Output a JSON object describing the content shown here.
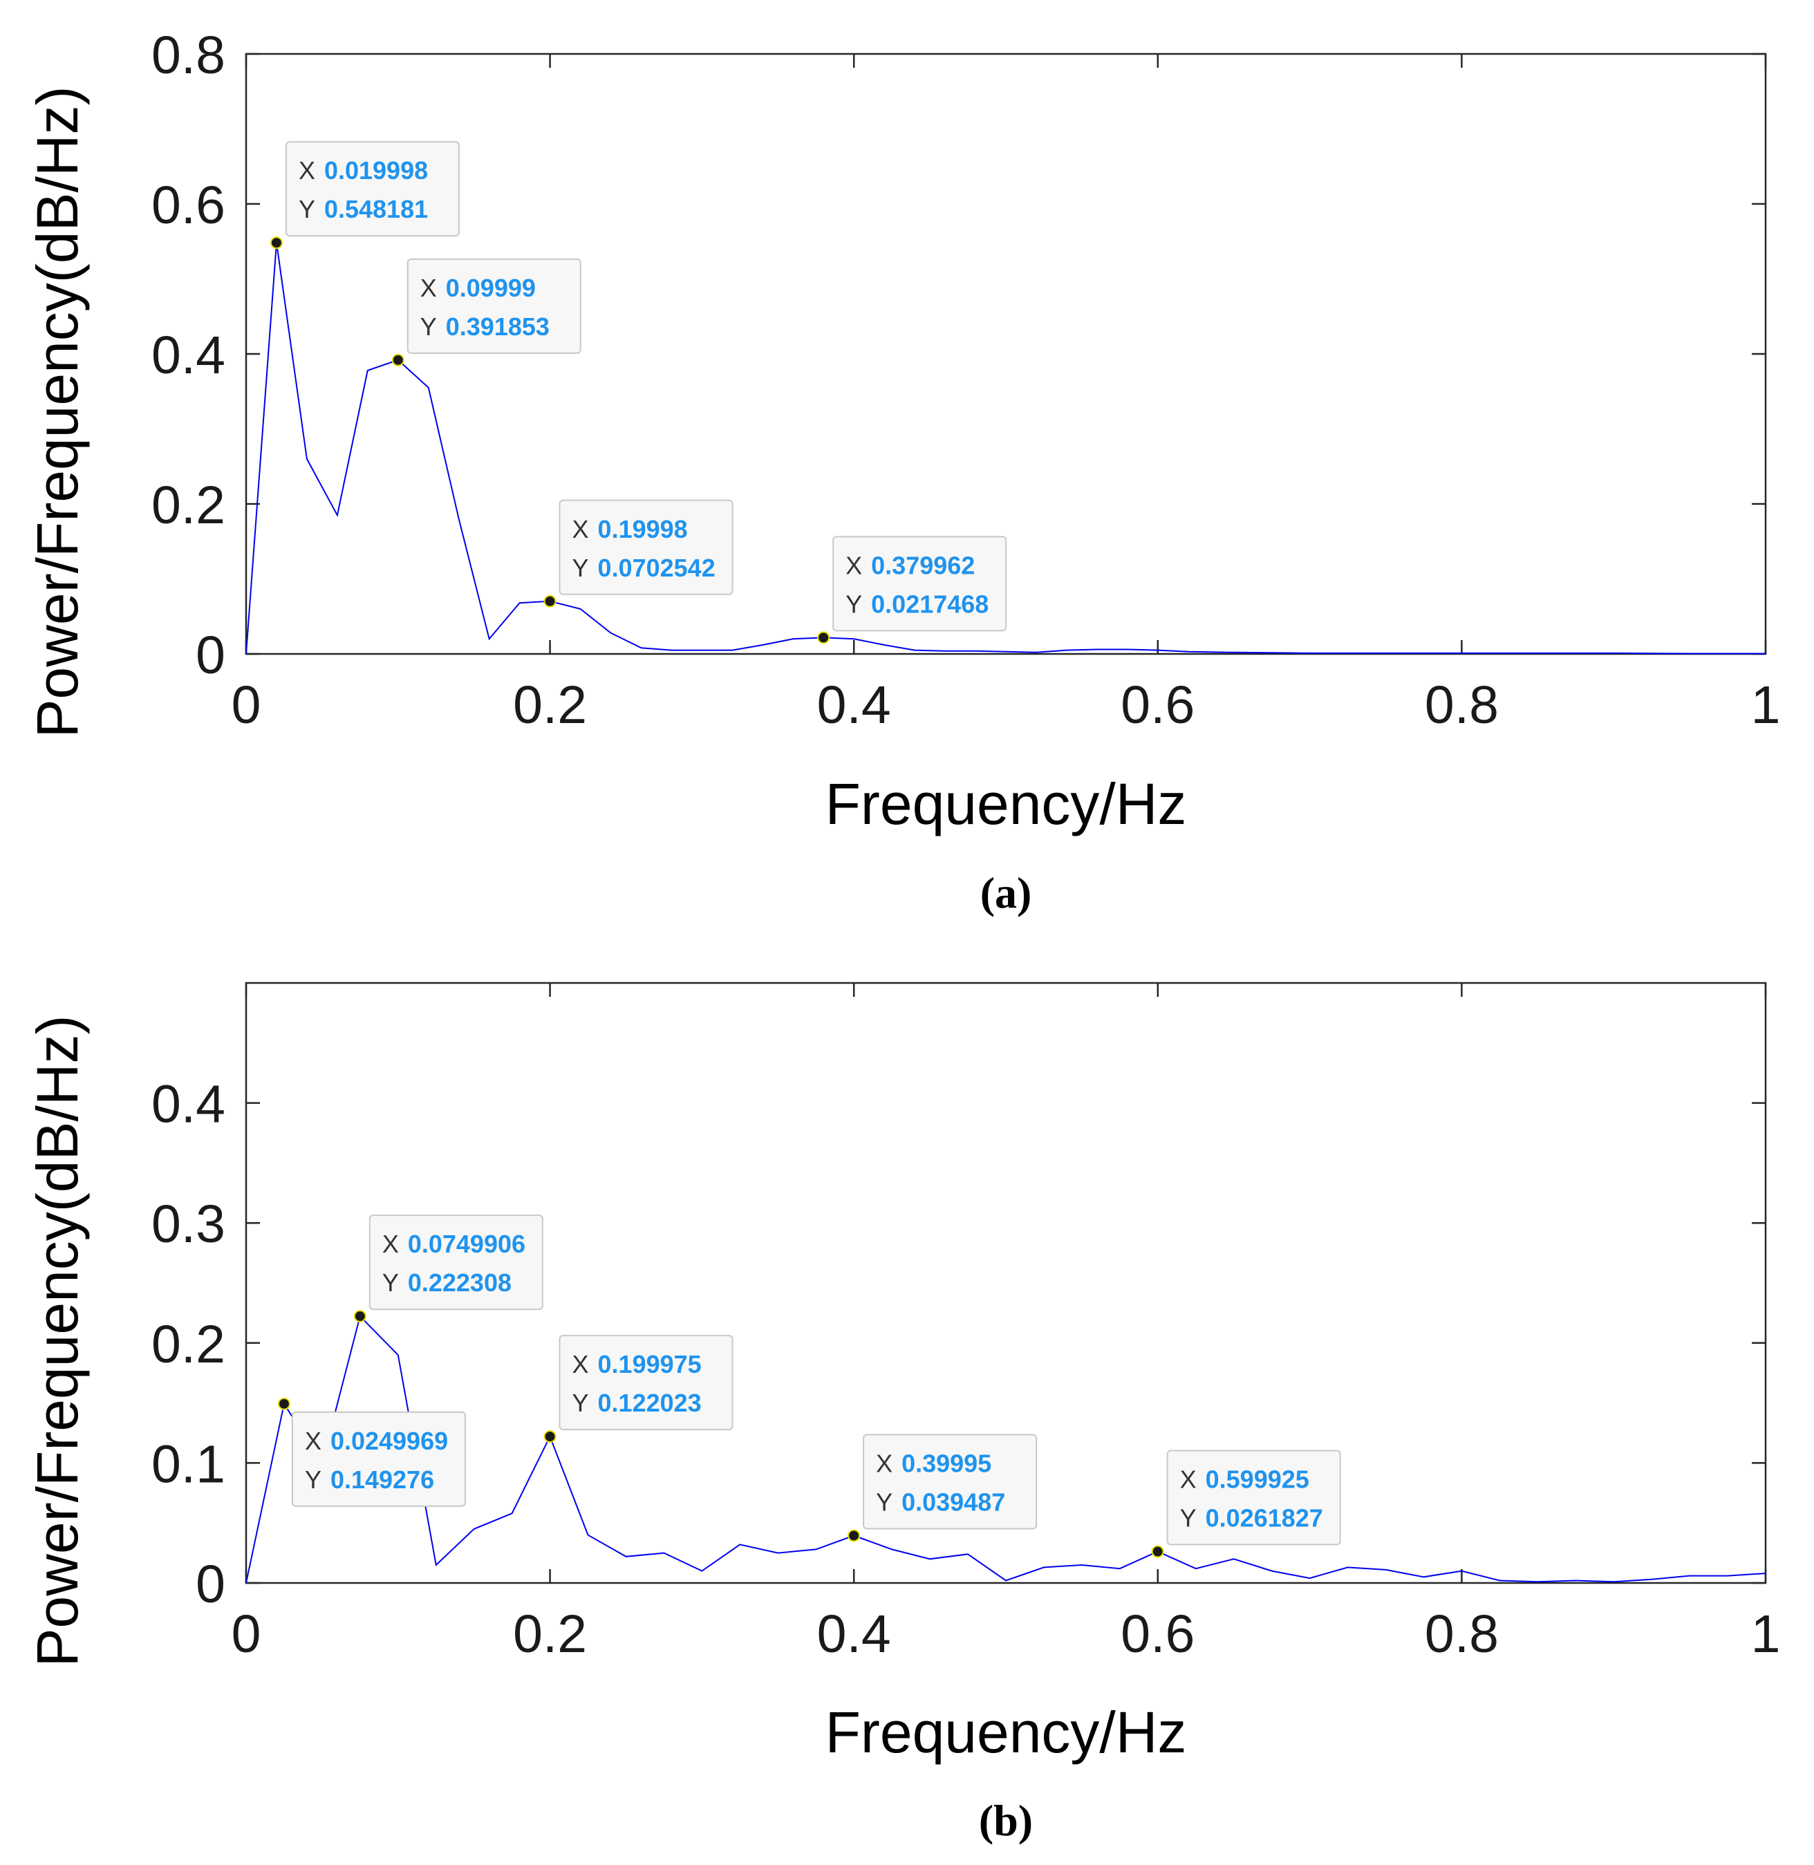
{
  "chart_data": [
    {
      "type": "line",
      "caption": "(a)",
      "xlabel": "Frequency/Hz",
      "ylabel": "Power/Frequency(dB/Hz)",
      "xlim": [
        0,
        1
      ],
      "ylim": [
        0,
        0.8
      ],
      "xticks": [
        0,
        0.2,
        0.4,
        0.6,
        0.8,
        1
      ],
      "xtick_labels": [
        "0",
        "0.2",
        "0.4",
        "0.6",
        "0.8",
        "1"
      ],
      "yticks": [
        0,
        0.2,
        0.4,
        0.6,
        0.8
      ],
      "ytick_labels": [
        "0",
        "0.2",
        "0.4",
        "0.6",
        "0.8"
      ],
      "line_color": "#0000ee",
      "series": [
        {
          "name": "spectrum",
          "x": [
            0,
            0.019998,
            0.04,
            0.06,
            0.08,
            0.09999,
            0.12,
            0.14,
            0.16,
            0.18,
            0.19998,
            0.22,
            0.24,
            0.26,
            0.28,
            0.3,
            0.32,
            0.34,
            0.36,
            0.379962,
            0.4,
            0.42,
            0.44,
            0.46,
            0.48,
            0.5,
            0.52,
            0.54,
            0.56,
            0.58,
            0.6,
            0.62,
            0.65,
            0.7,
            0.75,
            0.8,
            0.85,
            0.9,
            0.95,
            1.0
          ],
          "y": [
            0,
            0.548181,
            0.26,
            0.185,
            0.378,
            0.391853,
            0.355,
            0.18,
            0.02,
            0.068,
            0.0702542,
            0.06,
            0.028,
            0.008,
            0.005,
            0.005,
            0.005,
            0.012,
            0.02,
            0.0217468,
            0.02,
            0.012,
            0.005,
            0.004,
            0.004,
            0.003,
            0.002,
            0.005,
            0.006,
            0.006,
            0.005,
            0.003,
            0.002,
            0.001,
            0.001,
            0.001,
            0.001,
            0.001,
            0.0005,
            0.0005
          ]
        }
      ],
      "annotations": [
        {
          "x_label": "X",
          "y_label": "Y",
          "x": 0.019998,
          "y": 0.548181,
          "x_text": "0.019998",
          "y_text": "0.548181",
          "placement": "upper-right"
        },
        {
          "x_label": "X",
          "y_label": "Y",
          "x": 0.09999,
          "y": 0.391853,
          "x_text": "0.09999",
          "y_text": "0.391853",
          "placement": "upper-right"
        },
        {
          "x_label": "X",
          "y_label": "Y",
          "x": 0.19998,
          "y": 0.0702542,
          "x_text": "0.19998",
          "y_text": "0.0702542",
          "placement": "upper-right"
        },
        {
          "x_label": "X",
          "y_label": "Y",
          "x": 0.379962,
          "y": 0.0217468,
          "x_text": "0.379962",
          "y_text": "0.0217468",
          "placement": "upper-right"
        }
      ]
    },
    {
      "type": "line",
      "caption": "(b)",
      "xlabel": "Frequency/Hz",
      "ylabel": "Power/Frequency(dB/Hz)",
      "xlim": [
        0,
        1
      ],
      "ylim": [
        0,
        0.5
      ],
      "xticks": [
        0,
        0.2,
        0.4,
        0.6,
        0.8,
        1
      ],
      "xtick_labels": [
        "0",
        "0.2",
        "0.4",
        "0.6",
        "0.8",
        "1"
      ],
      "yticks": [
        0,
        0.1,
        0.2,
        0.3,
        0.4
      ],
      "ytick_labels": [
        "0",
        "0.1",
        "0.2",
        "0.3",
        "0.4"
      ],
      "line_color": "#0000ee",
      "series": [
        {
          "name": "spectrum",
          "x": [
            0,
            0.0249969,
            0.05,
            0.0749906,
            0.1,
            0.125,
            0.15,
            0.175,
            0.199975,
            0.225,
            0.25,
            0.275,
            0.3,
            0.325,
            0.35,
            0.375,
            0.39995,
            0.425,
            0.45,
            0.475,
            0.5,
            0.525,
            0.55,
            0.575,
            0.599925,
            0.625,
            0.65,
            0.675,
            0.7,
            0.725,
            0.75,
            0.775,
            0.8,
            0.825,
            0.85,
            0.875,
            0.9,
            0.925,
            0.95,
            0.975,
            1.0
          ],
          "y": [
            0,
            0.149276,
            0.1,
            0.222308,
            0.19,
            0.015,
            0.045,
            0.058,
            0.122023,
            0.04,
            0.022,
            0.025,
            0.01,
            0.032,
            0.025,
            0.028,
            0.039487,
            0.028,
            0.02,
            0.024,
            0.002,
            0.013,
            0.015,
            0.012,
            0.0261827,
            0.012,
            0.02,
            0.01,
            0.004,
            0.013,
            0.011,
            0.005,
            0.01,
            0.002,
            0.001,
            0.002,
            0.001,
            0.003,
            0.006,
            0.006,
            0.008
          ]
        }
      ],
      "annotations": [
        {
          "x_label": "X",
          "y_label": "Y",
          "x": 0.0249969,
          "y": 0.149276,
          "x_text": "0.0249969",
          "y_text": "0.149276",
          "placement": "lower-right"
        },
        {
          "x_label": "X",
          "y_label": "Y",
          "x": 0.0749906,
          "y": 0.222308,
          "x_text": "0.0749906",
          "y_text": "0.222308",
          "placement": "upper-right"
        },
        {
          "x_label": "X",
          "y_label": "Y",
          "x": 0.199975,
          "y": 0.122023,
          "x_text": "0.199975",
          "y_text": "0.122023",
          "placement": "upper-right"
        },
        {
          "x_label": "X",
          "y_label": "Y",
          "x": 0.39995,
          "y": 0.039487,
          "x_text": "0.39995",
          "y_text": "0.039487",
          "placement": "upper-right"
        },
        {
          "x_label": "X",
          "y_label": "Y",
          "x": 0.599925,
          "y": 0.0261827,
          "x_text": "0.599925",
          "y_text": "0.0261827",
          "placement": "upper-right"
        }
      ]
    }
  ]
}
